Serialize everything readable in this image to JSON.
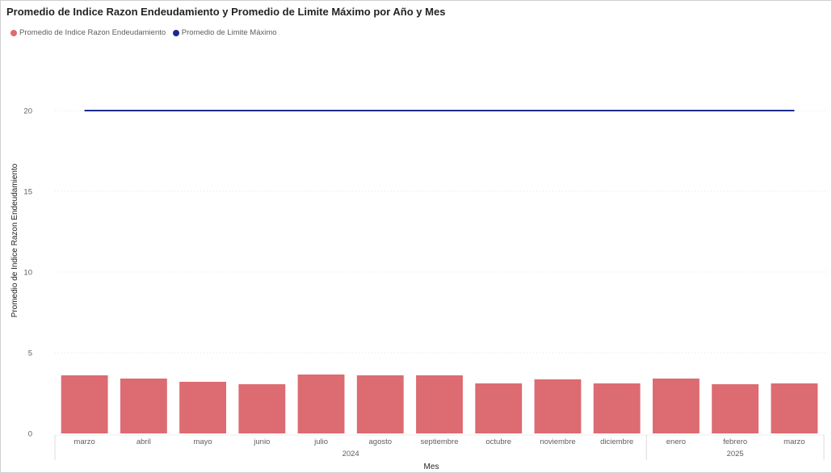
{
  "chart_data": {
    "type": "bar",
    "title": "Promedio de Indice Razon Endeudamiento y Promedio de Limite Máximo por Año y Mes",
    "xlabel": "Mes",
    "ylabel": "Promedio de Indice Razon Endeudamiento",
    "ylim": [
      0,
      21
    ],
    "yticks": [
      0,
      5,
      10,
      15,
      20
    ],
    "categories": [
      "marzo",
      "abril",
      "mayo",
      "junio",
      "julio",
      "agosto",
      "septiembre",
      "octubre",
      "noviembre",
      "diciembre",
      "enero",
      "febrero",
      "marzo"
    ],
    "year_groups": [
      {
        "label": "2024",
        "start": 0,
        "end": 9
      },
      {
        "label": "2025",
        "start": 10,
        "end": 12
      }
    ],
    "series": [
      {
        "name": "Promedio de Indice Razon Endeudamiento",
        "type": "bar",
        "color": "#DD6B72",
        "values": [
          3.6,
          3.4,
          3.2,
          3.05,
          3.65,
          3.6,
          3.6,
          3.1,
          3.35,
          3.1,
          3.4,
          3.05,
          3.1
        ]
      },
      {
        "name": "Promedio de Limite Máximo",
        "type": "line",
        "color": "#1C2A8C",
        "values": [
          20,
          20,
          20,
          20,
          20,
          20,
          20,
          20,
          20,
          20,
          20,
          20,
          20
        ]
      }
    ],
    "grid": true,
    "legend_position": "top-left"
  }
}
